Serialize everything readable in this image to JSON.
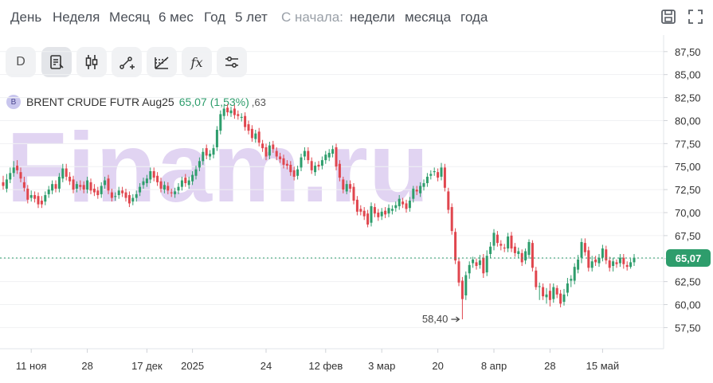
{
  "periods": [
    "День",
    "Неделя",
    "Месяц",
    "6 мес",
    "Год",
    "5 лет"
  ],
  "since_label": "С начала:",
  "since_periods": [
    "недели",
    "месяца",
    "года"
  ],
  "top_icons": [
    "save-icon",
    "fullscreen-icon"
  ],
  "tools": {
    "interval_label": "D",
    "icons": [
      "report-icon",
      "candles-icon",
      "line-draw-icon",
      "fibonacci-icon",
      "function-icon",
      "settings-sliders-icon"
    ],
    "fx_label": "fx"
  },
  "legend": {
    "badge": "B",
    "instrument": "BRENT CRUDE FUTR Aug25",
    "price": "65,07",
    "change": "(1,53%)",
    "extra": ",63"
  },
  "watermark": "Finam.ru",
  "colors": {
    "up": "#2e9d6c",
    "down": "#e0464e",
    "price_line": "#2e9d6c",
    "watermark": "#7b3fc6"
  },
  "chart_data": {
    "type": "candlestick",
    "instrument": "BRENT CRUDE FUTR Aug25",
    "y_ticks": [
      "87,50",
      "85,00",
      "82,50",
      "80,00",
      "77,50",
      "75,00",
      "72,50",
      "70,00",
      "67,50",
      "65,00",
      "62,50",
      "60,00",
      "57,50"
    ],
    "y_tick_values": [
      87.5,
      85,
      82.5,
      80,
      77.5,
      75,
      72.5,
      70,
      67.5,
      65,
      62.5,
      60,
      57.5
    ],
    "ylim": [
      55.2,
      89.3
    ],
    "x_ticks": [
      "11 ноя",
      "28",
      "17 дек",
      "2025",
      "24",
      "12 фев",
      "3 мар",
      "20",
      "8 апр",
      "28",
      "15 май"
    ],
    "current_price": 65.07,
    "current_price_label": "65,07",
    "low_annotation": {
      "value": 58.4,
      "label": "58,40"
    },
    "close": [
      72.9,
      73.6,
      74.3,
      74.9,
      74.6,
      73.7,
      72.7,
      71.4,
      71.9,
      71.5,
      70.9,
      70.9,
      71.9,
      72.5,
      73.1,
      72.6,
      73.9,
      74.8,
      73.9,
      73.4,
      72.5,
      73.1,
      72.8,
      72.5,
      73.5,
      72.4,
      72.2,
      71.9,
      72.9,
      73.5,
      72.4,
      71.6,
      71.8,
      72.4,
      72.1,
      71.6,
      71.0,
      71.6,
      72.0,
      72.8,
      73.4,
      73.7,
      74.5,
      73.8,
      73.3,
      72.6,
      73.0,
      72.4,
      72.1,
      72.3,
      72.8,
      73.5,
      73.2,
      73.5,
      74.1,
      74.7,
      75.6,
      76.6,
      76.2,
      76.4,
      77.0,
      79.0,
      80.7,
      81.3,
      80.9,
      81.1,
      80.6,
      80.5,
      80.4,
      79.3,
      78.9,
      78.1,
      78.6,
      77.6,
      77.0,
      76.1,
      77.3,
      76.9,
      76.1,
      75.8,
      75.2,
      75.1,
      74.4,
      73.9,
      74.7,
      76.0,
      76.7,
      75.7,
      74.6,
      75.1,
      75.0,
      75.7,
      76.3,
      76.5,
      76.9,
      75.0,
      73.8,
      72.5,
      73.1,
      72.6,
      71.3,
      70.1,
      70.1,
      69.6,
      68.7,
      70.7,
      69.9,
      69.5,
      70.1,
      69.8,
      70.5,
      70.4,
      70.8,
      71.5,
      70.9,
      70.4,
      71.3,
      72.6,
      72.3,
      72.9,
      73.2,
      73.9,
      74.2,
      74.5,
      73.8,
      74.9,
      72.7,
      70.3,
      68.0,
      64.8,
      62.4,
      60.6,
      63.2,
      64.3,
      64.9,
      64.2,
      64.8,
      63.4,
      65.3,
      66.3,
      67.8,
      66.7,
      66.4,
      66.1,
      67.4,
      66.1,
      65.6,
      65.8,
      64.6,
      65.8,
      66.8,
      64.0,
      61.9,
      62.0,
      60.9,
      61.1,
      60.5,
      61.9,
      61.1,
      60.1,
      61.1,
      62.3,
      62.8,
      64.1,
      64.9,
      66.8,
      65.7,
      64.0,
      64.7,
      64.6,
      65.1,
      66.1,
      64.8,
      64.0,
      64.7,
      64.4,
      65.1,
      64.4,
      64.1,
      64.6,
      65.1
    ],
    "open": [
      73.3,
      72.6,
      73.6,
      74.3,
      75.1,
      74.4,
      73.3,
      72.6,
      71.6,
      71.9,
      71.8,
      71.3,
      71.2,
      72.0,
      72.4,
      73.1,
      72.6,
      73.7,
      74.8,
      73.9,
      73.6,
      72.6,
      73.0,
      73.0,
      72.5,
      73.3,
      72.6,
      72.4,
      72.0,
      73.0,
      73.7,
      72.2,
      71.7,
      71.9,
      72.4,
      72.2,
      71.9,
      71.2,
      71.6,
      72.2,
      73.0,
      73.2,
      73.6,
      74.5,
      74.0,
      73.4,
      72.5,
      72.9,
      72.2,
      72.0,
      72.4,
      72.8,
      73.8,
      73.0,
      73.4,
      74.0,
      74.9,
      75.6,
      77.0,
      76.1,
      76.3,
      77.1,
      78.9,
      80.5,
      81.4,
      80.8,
      81.3,
      80.7,
      80.3,
      80.5,
      79.6,
      79.1,
      78.0,
      78.8,
      77.5,
      77.1,
      76.2,
      77.4,
      76.7,
      76.1,
      75.9,
      75.3,
      75.2,
      74.6,
      74.0,
      74.9,
      76.1,
      76.7,
      75.6,
      74.4,
      75.2,
      75.1,
      75.7,
      76.0,
      76.4,
      77.1,
      75.3,
      73.6,
      72.3,
      73.1,
      72.8,
      71.4,
      70.4,
      70.2,
      69.9,
      68.9,
      70.6,
      70.0,
      69.6,
      70.2,
      69.9,
      70.2,
      70.5,
      70.7,
      71.2,
      71.0,
      70.5,
      71.5,
      72.5,
      72.1,
      72.8,
      73.2,
      74.0,
      74.4,
      74.4,
      73.9,
      74.9,
      72.3,
      70.6,
      67.9,
      64.7,
      62.6,
      61.0,
      63.4,
      64.5,
      64.6,
      64.3,
      65.1,
      63.5,
      65.5,
      66.4,
      67.6,
      66.6,
      66.2,
      66.1,
      67.5,
      66.3,
      65.5,
      65.6,
      64.8,
      65.4,
      66.7,
      63.7,
      62.0,
      61.9,
      60.8,
      61.5,
      60.6,
      61.8,
      61.2,
      60.3,
      61.3,
      62.6,
      62.6,
      63.8,
      65.1,
      66.7,
      65.9,
      64.0,
      64.9,
      64.5,
      65.1,
      66.0,
      64.8,
      64.2,
      64.6,
      64.5,
      65.1,
      64.3,
      64.1,
      64.6
    ],
    "high": [
      74.0,
      74.2,
      74.9,
      75.6,
      75.7,
      74.9,
      73.9,
      73.0,
      72.4,
      72.3,
      72.2,
      71.8,
      72.3,
      72.9,
      73.5,
      73.5,
      74.3,
      75.3,
      75.3,
      74.4,
      74.0,
      73.4,
      73.5,
      73.4,
      73.9,
      73.7,
      73.1,
      72.8,
      73.3,
      73.9,
      74.1,
      72.6,
      72.2,
      72.8,
      72.8,
      72.6,
      72.3,
      72.0,
      72.4,
      73.2,
      73.8,
      74.1,
      74.9,
      74.9,
      74.4,
      73.8,
      73.4,
      73.3,
      72.6,
      72.7,
      73.2,
      73.9,
      74.2,
      73.9,
      74.5,
      75.1,
      76.0,
      77.0,
      77.4,
      76.8,
      77.4,
      79.4,
      81.1,
      81.7,
      81.8,
      81.5,
      81.7,
      81.1,
      80.8,
      80.9,
      80.0,
      79.5,
      79.0,
      79.2,
      77.9,
      77.5,
      77.7,
      77.8,
      77.1,
      76.5,
      76.3,
      75.7,
      75.6,
      75.0,
      75.1,
      76.4,
      77.1,
      77.1,
      76.0,
      75.5,
      75.6,
      76.1,
      76.7,
      76.9,
      77.3,
      77.5,
      75.7,
      73.9,
      73.5,
      73.5,
      73.2,
      71.8,
      70.8,
      70.6,
      70.3,
      71.1,
      71.0,
      70.4,
      70.5,
      70.6,
      70.9,
      70.8,
      71.2,
      71.9,
      71.6,
      71.4,
      71.7,
      72.9,
      72.9,
      73.3,
      73.6,
      74.3,
      74.6,
      74.9,
      74.8,
      75.4,
      75.3,
      72.7,
      71.0,
      68.3,
      65.1,
      63.0,
      63.6,
      64.7,
      65.2,
      65.0,
      65.4,
      65.5,
      65.9,
      66.8,
      68.2,
      68.0,
      67.0,
      66.6,
      67.8,
      67.9,
      66.7,
      66.2,
      66.0,
      66.1,
      67.1,
      67.0,
      64.1,
      62.4,
      62.3,
      61.8,
      62.3,
      62.3,
      62.1,
      61.6,
      61.7,
      62.9,
      63.2,
      64.5,
      65.4,
      67.2,
      67.2,
      66.3,
      65.3,
      65.3,
      65.5,
      66.5,
      66.4,
      65.2,
      65.1,
      64.9,
      65.5,
      65.5,
      64.7,
      65.0,
      65.5
    ],
    "low": [
      72.5,
      72.2,
      73.2,
      73.9,
      74.2,
      73.3,
      72.3,
      71.0,
      71.2,
      71.1,
      70.5,
      70.5,
      70.8,
      71.6,
      72.0,
      72.2,
      72.2,
      73.3,
      73.5,
      73.0,
      72.1,
      72.2,
      72.4,
      72.1,
      72.1,
      72.0,
      71.8,
      71.5,
      71.6,
      72.6,
      72.0,
      71.2,
      71.3,
      71.5,
      71.7,
      71.2,
      70.6,
      70.8,
      71.2,
      71.8,
      72.6,
      72.8,
      73.2,
      73.4,
      72.9,
      72.2,
      72.1,
      72.0,
      71.7,
      71.6,
      72.0,
      72.4,
      72.8,
      72.6,
      73.0,
      73.6,
      74.5,
      75.2,
      75.8,
      75.7,
      75.9,
      76.7,
      78.5,
      80.1,
      80.5,
      80.4,
      80.2,
      80.1,
      79.9,
      78.9,
      78.5,
      77.7,
      77.6,
      77.2,
      76.6,
      75.7,
      75.8,
      76.5,
      75.7,
      75.4,
      74.8,
      74.7,
      74.0,
      73.5,
      73.6,
      74.5,
      75.7,
      75.3,
      74.2,
      74.0,
      74.6,
      74.7,
      75.3,
      75.6,
      76.0,
      74.6,
      73.4,
      72.1,
      72.0,
      72.2,
      70.9,
      69.7,
      69.7,
      69.2,
      68.4,
      68.5,
      69.5,
      69.1,
      69.2,
      69.4,
      69.5,
      69.8,
      70.1,
      70.3,
      70.5,
      70.0,
      70.1,
      71.1,
      71.9,
      71.7,
      72.4,
      72.8,
      73.6,
      74.0,
      73.4,
      73.5,
      72.3,
      69.9,
      67.6,
      64.4,
      62.0,
      58.4,
      60.5,
      62.8,
      64.0,
      63.8,
      63.9,
      62.9,
      63.1,
      65.1,
      65.9,
      66.3,
      65.9,
      65.7,
      65.7,
      65.7,
      65.2,
      65.1,
      64.2,
      64.4,
      65.0,
      63.6,
      61.6,
      60.5,
      60.5,
      60.1,
      59.8,
      60.2,
      60.7,
      59.7,
      59.9,
      60.9,
      61.9,
      62.2,
      63.4,
      64.5,
      65.3,
      63.6,
      63.6,
      64.2,
      64.1,
      64.7,
      64.4,
      63.6,
      63.6,
      64.0,
      64.1,
      63.9,
      63.7,
      63.9,
      64.2
    ]
  }
}
